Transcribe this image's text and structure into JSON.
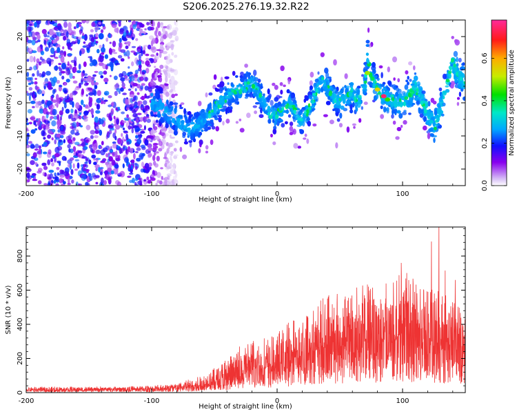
{
  "title": "S206.2025.276.19.32.R22",
  "chart_data": [
    {
      "type": "heatmap",
      "name": "spectrogram",
      "xlabel": "Height of straight line (km)",
      "ylabel": "Frequency (Hz)",
      "xlim": [
        -200,
        150
      ],
      "ylim": [
        -25,
        25
      ],
      "xticks": [
        -200,
        -100,
        0,
        100
      ],
      "yticks": [
        -20,
        -10,
        0,
        10,
        20
      ],
      "colorbar": {
        "label": "Normalized spectral amplitude",
        "range": [
          0.0,
          0.78
        ],
        "ticks": [
          0.0,
          0.2,
          0.4,
          0.6
        ]
      },
      "ridge": {
        "x": [
          -100,
          -90,
          -80,
          -70,
          -60,
          -50,
          -40,
          -30,
          -20,
          -15,
          -10,
          -5,
          0,
          5,
          10,
          15,
          20,
          25,
          30,
          35,
          40,
          45,
          50,
          55,
          60,
          65,
          70,
          72,
          75,
          80,
          85,
          90,
          95,
          100,
          105,
          110,
          115,
          120,
          125,
          130,
          135,
          140,
          145,
          150
        ],
        "y": [
          0,
          -2,
          -5,
          -8,
          -6,
          -2,
          2,
          4,
          6,
          3,
          0,
          -3,
          -4,
          -2,
          0,
          -3,
          -6,
          -2,
          2,
          7,
          5,
          2,
          0,
          2,
          3,
          0,
          5,
          15,
          8,
          4,
          2,
          1,
          0,
          0,
          2,
          5,
          1,
          -3,
          -8,
          -2,
          5,
          12,
          8,
          6
        ],
        "peak_amplitudes": [
          {
            "x": 85,
            "y": 2,
            "amplitude": 0.75
          },
          {
            "x": 80,
            "y": 4,
            "amplitude": 0.55
          },
          {
            "x": 72,
            "y": 9,
            "amplitude": 0.5
          },
          {
            "x": 88,
            "y": 1,
            "amplitude": 0.45
          }
        ]
      },
      "noise_region": {
        "x_from": -200,
        "x_to": -90,
        "amplitude": 0.2
      }
    },
    {
      "type": "line",
      "name": "snr",
      "xlabel": "Height of straight line (km)",
      "ylabel": "SNR (10 * v/v)",
      "xlim": [
        -200,
        150
      ],
      "ylim": [
        0,
        970
      ],
      "xticks": [
        -200,
        -100,
        0,
        100
      ],
      "yticks": [
        0,
        200,
        400,
        600,
        800
      ],
      "color": "#ee3333",
      "envelope": {
        "x": [
          -200,
          -150,
          -100,
          -80,
          -70,
          -60,
          -50,
          -40,
          -30,
          -20,
          -10,
          0,
          10,
          20,
          30,
          40,
          50,
          60,
          70,
          80,
          90,
          100,
          110,
          120,
          130,
          140,
          150
        ],
        "mean": [
          15,
          15,
          18,
          25,
          30,
          40,
          60,
          80,
          110,
          130,
          140,
          150,
          180,
          210,
          240,
          260,
          270,
          280,
          290,
          290,
          300,
          320,
          300,
          280,
          270,
          260,
          260
        ],
        "max": [
          35,
          35,
          40,
          60,
          80,
          100,
          160,
          200,
          250,
          310,
          320,
          350,
          420,
          480,
          520,
          600,
          580,
          620,
          650,
          640,
          660,
          720,
          680,
          650,
          600,
          560,
          520
        ]
      },
      "spikes": [
        {
          "x": 129,
          "y": 970
        },
        {
          "x": 123,
          "y": 885
        },
        {
          "x": 99,
          "y": 760
        },
        {
          "x": 134,
          "y": 715
        },
        {
          "x": 142,
          "y": 660
        },
        {
          "x": 76,
          "y": 615
        },
        {
          "x": -30,
          "y": 270
        }
      ]
    }
  ]
}
